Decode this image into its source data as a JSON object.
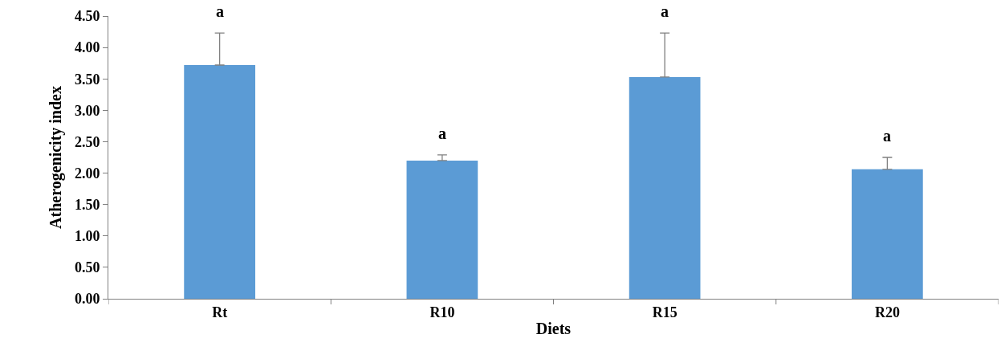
{
  "chart_data": {
    "type": "bar",
    "xlabel": "Diets",
    "ylabel": "Atherogenicity index",
    "categories": [
      "Rt",
      "R10",
      "R15",
      "R20"
    ],
    "values": [
      3.72,
      2.2,
      3.53,
      2.06
    ],
    "errors": [
      [
        3.72,
        4.23
      ],
      [
        2.2,
        2.29
      ],
      [
        3.53,
        4.23
      ],
      [
        2.06,
        2.25
      ]
    ],
    "color": "#5b9bd5",
    "ylim": [
      0,
      4.5
    ],
    "yticks": [
      {
        "value": 0,
        "label": "0.00"
      },
      {
        "value": 0.5,
        "label": "0.50"
      },
      {
        "value": 1,
        "label": "1.00"
      },
      {
        "value": 1.5,
        "label": "1.50"
      },
      {
        "value": 2,
        "label": "2.00"
      },
      {
        "value": 2.5,
        "label": "2.50"
      },
      {
        "value": 3,
        "label": "3.00"
      },
      {
        "value": 3.5,
        "label": "3.50"
      },
      {
        "value": 4,
        "label": "4.00"
      },
      {
        "value": 4.5,
        "label": "4.50"
      }
    ],
    "annotations": [
      "a",
      "a",
      "a",
      "a"
    ]
  }
}
